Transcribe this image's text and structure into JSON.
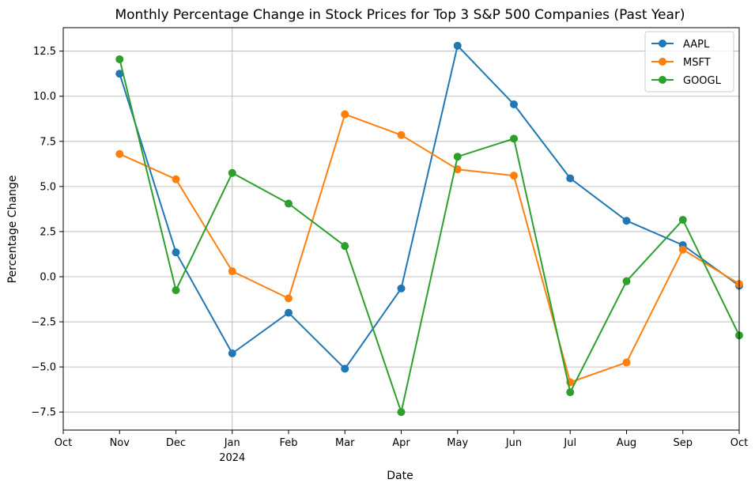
{
  "chart_data": {
    "type": "line",
    "title": "Monthly Percentage Change in Stock Prices for Top 3 S&P 500 Companies (Past Year)",
    "xlabel": "Date",
    "ylabel": "Percentage Change",
    "x_ticks": [
      "Oct",
      "Nov",
      "Dec",
      "Jan",
      "Feb",
      "Mar",
      "Apr",
      "May",
      "Jun",
      "Jul",
      "Aug",
      "Sep",
      "Oct"
    ],
    "x_tick_sublabels": {
      "Jan": "2024"
    },
    "x_dates": [
      "2023-11",
      "2023-12",
      "2024-01",
      "2024-02",
      "2024-03",
      "2024-04",
      "2024-05",
      "2024-06",
      "2024-07",
      "2024-08",
      "2024-09",
      "2024-10"
    ],
    "xlim": [
      "2023-10",
      "2024-10"
    ],
    "ylim": [
      -8.5,
      13.8
    ],
    "y_ticks": [
      -7.5,
      -5.0,
      -2.5,
      0.0,
      2.5,
      5.0,
      7.5,
      10.0,
      12.5
    ],
    "y_tick_labels": [
      "−7.5",
      "−5.0",
      "−2.5",
      "0.0",
      "2.5",
      "5.0",
      "7.5",
      "10.0",
      "12.5"
    ],
    "grid": true,
    "legend_position": "top-right",
    "series": [
      {
        "name": "AAPL",
        "color": "#1f77b4",
        "values": [
          11.25,
          1.35,
          -4.25,
          -2.0,
          -5.1,
          -0.65,
          12.8,
          9.55,
          5.45,
          3.1,
          1.75,
          -0.5
        ]
      },
      {
        "name": "MSFT",
        "color": "#ff7f0e",
        "values": [
          6.8,
          5.4,
          0.3,
          -1.2,
          9.0,
          7.85,
          5.95,
          5.6,
          -5.85,
          -4.75,
          1.5,
          -0.4
        ]
      },
      {
        "name": "GOOGL",
        "color": "#2ca02c",
        "values": [
          12.05,
          -0.75,
          5.75,
          4.05,
          1.7,
          -7.5,
          6.65,
          7.65,
          -6.4,
          -0.25,
          3.15,
          -3.25
        ]
      }
    ]
  }
}
